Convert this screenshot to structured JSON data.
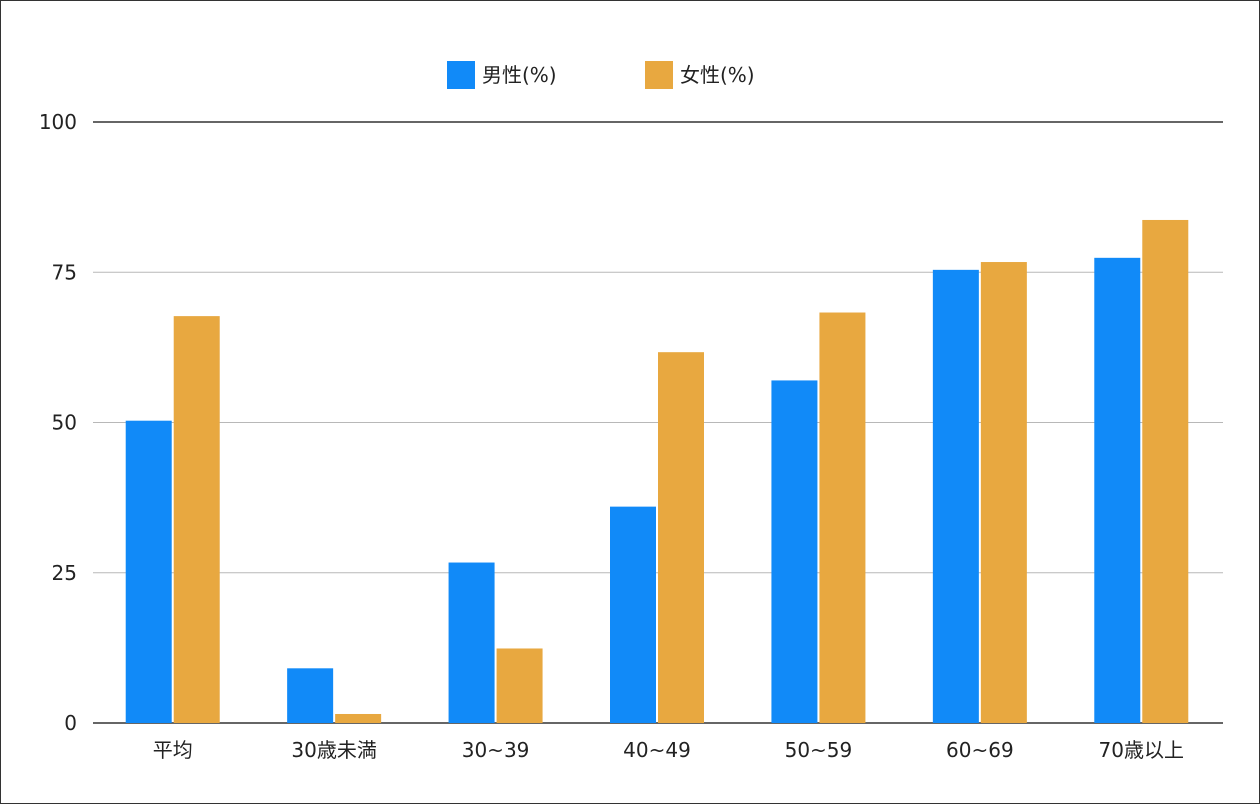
{
  "chart_data": {
    "type": "bar",
    "title": "",
    "xlabel": "",
    "ylabel": "",
    "categories": [
      "平均",
      "30歳未満",
      "30~39",
      "40~49",
      "50~59",
      "60~69",
      "70歳以上"
    ],
    "series": [
      {
        "name": "男性(%)",
        "color": "#118AF8",
        "values": [
          50.3,
          9.1,
          26.7,
          36.0,
          57.0,
          75.4,
          77.4
        ]
      },
      {
        "name": "女性(%)",
        "color": "#E8A840",
        "values": [
          67.7,
          1.5,
          12.4,
          61.7,
          68.3,
          76.7,
          83.7
        ]
      }
    ],
    "ylim": [
      0,
      100
    ],
    "yticks": [
      "0",
      "25",
      "50",
      "75",
      "100"
    ],
    "grid": true,
    "legend_position": "top-center"
  }
}
